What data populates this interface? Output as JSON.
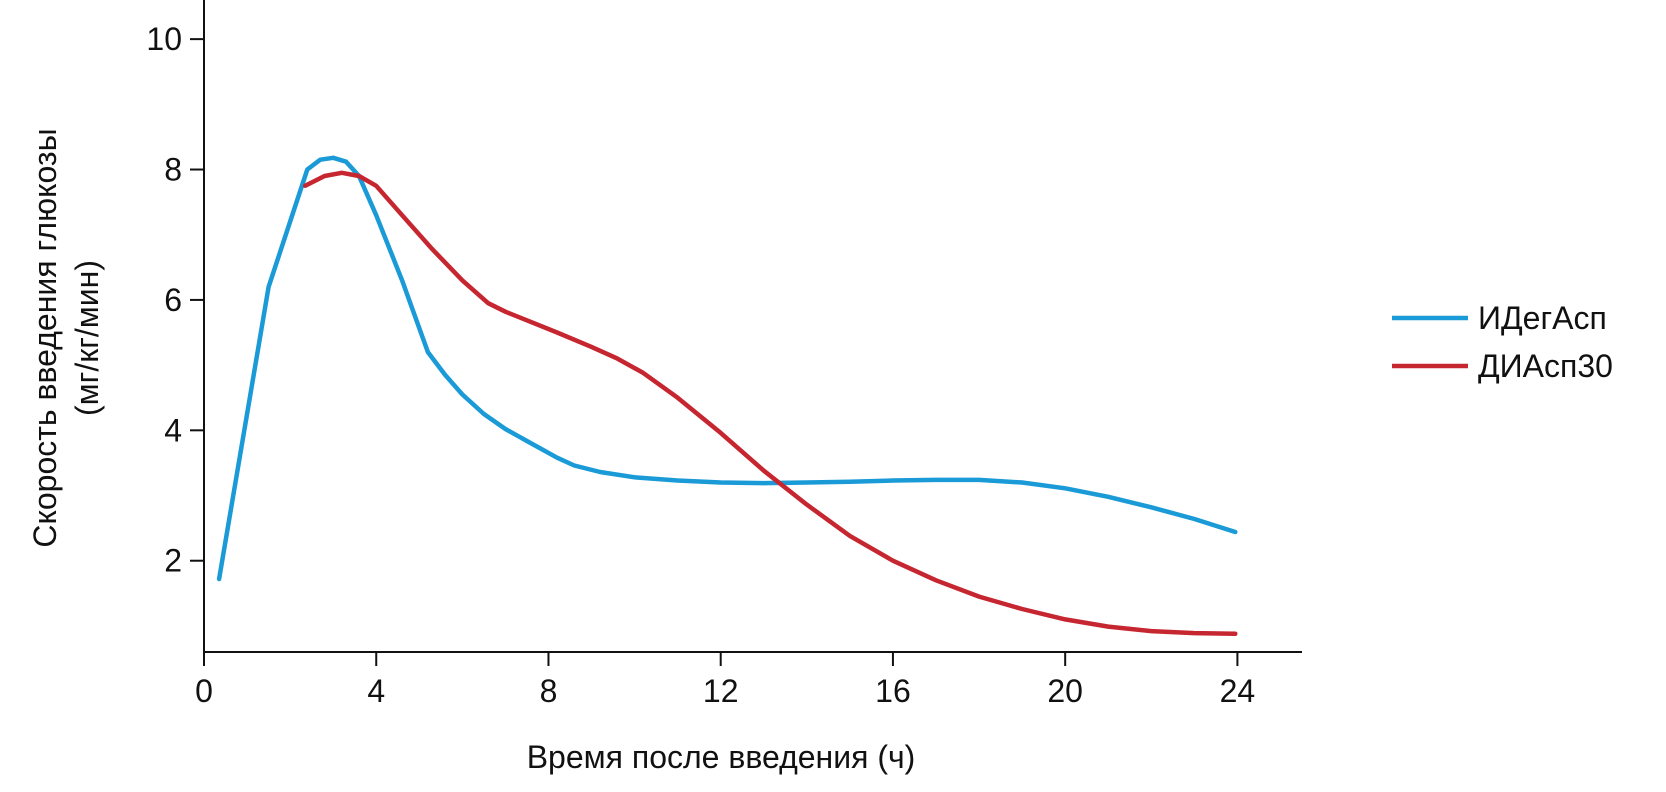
{
  "chart_data": {
    "type": "line",
    "title": "",
    "xlabel": "Время после введения (ч)",
    "ylabel_line1": "Скорость введения глюкозы",
    "ylabel_line2": "(мг/кг/мин)",
    "xlim": [
      0,
      25.5
    ],
    "ylim": [
      0.6,
      10.6
    ],
    "xticks": [
      0,
      4,
      8,
      12,
      16,
      20,
      24
    ],
    "yticks": [
      2,
      4,
      6,
      8,
      10
    ],
    "xtick_labels": [
      "0",
      "4",
      "8",
      "12",
      "16",
      "20",
      "24"
    ],
    "ytick_labels": [
      "2",
      "4",
      "6",
      "8",
      "10"
    ],
    "grid": false,
    "legend_position": "right",
    "series": [
      {
        "name": "ИДегАсп",
        "color": "#1a9ad6",
        "points": [
          [
            0.35,
            1.72
          ],
          [
            1.5,
            6.2
          ],
          [
            2.4,
            8.0
          ],
          [
            2.7,
            8.15
          ],
          [
            3.0,
            8.18
          ],
          [
            3.3,
            8.12
          ],
          [
            3.6,
            7.9
          ],
          [
            4.0,
            7.3
          ],
          [
            4.6,
            6.3
          ],
          [
            5.2,
            5.2
          ],
          [
            5.6,
            4.85
          ],
          [
            6.0,
            4.55
          ],
          [
            6.5,
            4.25
          ],
          [
            7.0,
            4.02
          ],
          [
            7.6,
            3.8
          ],
          [
            8.2,
            3.58
          ],
          [
            8.6,
            3.46
          ],
          [
            9.2,
            3.36
          ],
          [
            10.0,
            3.28
          ],
          [
            11.0,
            3.23
          ],
          [
            12.0,
            3.2
          ],
          [
            13.0,
            3.19
          ],
          [
            14.0,
            3.2
          ],
          [
            15.0,
            3.21
          ],
          [
            16.0,
            3.23
          ],
          [
            17.0,
            3.24
          ],
          [
            18.0,
            3.24
          ],
          [
            19.0,
            3.2
          ],
          [
            20.0,
            3.11
          ],
          [
            21.0,
            2.98
          ],
          [
            22.0,
            2.82
          ],
          [
            23.0,
            2.64
          ],
          [
            23.95,
            2.44
          ]
        ]
      },
      {
        "name": "ДИАсп30",
        "color": "#c62630",
        "points": [
          [
            2.35,
            7.75
          ],
          [
            2.8,
            7.9
          ],
          [
            3.2,
            7.95
          ],
          [
            3.6,
            7.9
          ],
          [
            4.0,
            7.75
          ],
          [
            4.6,
            7.3
          ],
          [
            5.3,
            6.78
          ],
          [
            6.0,
            6.3
          ],
          [
            6.6,
            5.95
          ],
          [
            7.0,
            5.82
          ],
          [
            7.6,
            5.66
          ],
          [
            8.2,
            5.5
          ],
          [
            9.0,
            5.28
          ],
          [
            9.6,
            5.1
          ],
          [
            10.2,
            4.88
          ],
          [
            11.0,
            4.5
          ],
          [
            12.0,
            3.96
          ],
          [
            13.0,
            3.38
          ],
          [
            14.0,
            2.86
          ],
          [
            15.0,
            2.38
          ],
          [
            16.0,
            2.0
          ],
          [
            17.0,
            1.7
          ],
          [
            18.0,
            1.45
          ],
          [
            19.0,
            1.26
          ],
          [
            20.0,
            1.1
          ],
          [
            21.0,
            0.99
          ],
          [
            22.0,
            0.92
          ],
          [
            23.0,
            0.89
          ],
          [
            23.95,
            0.88
          ]
        ]
      }
    ]
  }
}
